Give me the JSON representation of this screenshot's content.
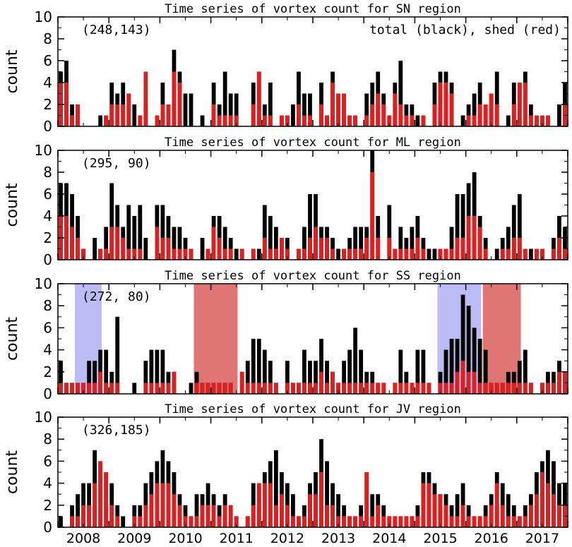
{
  "chart_data": [
    {
      "type": "bar",
      "region": "SN",
      "title": "Time series of vortex count for SN region",
      "ylabel": "count",
      "ylim": [
        0,
        10
      ],
      "yticks": [
        0,
        2,
        4,
        6,
        8,
        10
      ],
      "count_label": "(248,143)",
      "legend_label": "total (black), shed (red)",
      "series": [
        {
          "name": "total (black)",
          "color": "#000000",
          "values": [
            5,
            6,
            2,
            2,
            0,
            0,
            0,
            1,
            1,
            4,
            3,
            4,
            3,
            2,
            1,
            2,
            0,
            1,
            4,
            2,
            7,
            5,
            3,
            3,
            0,
            1,
            0,
            4,
            2,
            5,
            3,
            3,
            0,
            0,
            4,
            5,
            2,
            4,
            0,
            1,
            1,
            2,
            5,
            3,
            3,
            0,
            4,
            1,
            5,
            3,
            3,
            1,
            1,
            0,
            3,
            4,
            5,
            3,
            1,
            4,
            6,
            2,
            2,
            1,
            1,
            0,
            4,
            5,
            5,
            4,
            0,
            1,
            2,
            3,
            4,
            2,
            3,
            5,
            0,
            1,
            4,
            4,
            5,
            2,
            1,
            1,
            1,
            0,
            2,
            4
          ],
          "overlay": null
        },
        {
          "name": "shed (red)",
          "color": "#dd1f1f",
          "values": [
            4,
            4,
            1,
            2,
            0,
            0,
            0,
            0,
            1,
            2,
            2,
            2,
            3,
            0,
            1,
            5,
            0,
            1,
            2,
            2,
            5,
            4,
            0,
            0,
            0,
            0,
            0,
            2,
            1,
            1,
            1,
            1,
            0,
            0,
            2,
            5,
            1,
            1,
            0,
            1,
            1,
            0,
            2,
            1,
            1,
            0,
            2,
            1,
            4,
            3,
            3,
            1,
            1,
            0,
            1,
            2,
            3,
            2,
            1,
            3,
            2,
            1,
            1,
            0,
            1,
            0,
            2,
            4,
            4,
            3,
            0,
            0,
            1,
            1,
            2,
            2,
            3,
            2,
            0,
            0,
            2,
            4,
            4,
            1,
            1,
            1,
            1,
            0,
            0,
            2
          ]
        }
      ],
      "xticks": [
        "2008",
        "2009",
        "2010",
        "2011",
        "2012",
        "2013",
        "2014",
        "2015",
        "2016",
        "2017"
      ],
      "shaded_spans": []
    },
    {
      "type": "bar",
      "region": "ML",
      "title": "Time series of vortex count for ML region",
      "ylabel": "count",
      "ylim": [
        0,
        10
      ],
      "yticks": [
        0,
        2,
        4,
        6,
        8,
        10
      ],
      "count_label": "(295, 90)",
      "legend_label": "",
      "series": [
        {
          "name": "total (black)",
          "color": "#000000",
          "values": [
            7,
            7,
            6,
            4,
            1,
            0,
            2,
            1,
            3,
            7,
            5,
            3,
            5,
            4,
            5,
            2,
            0,
            5,
            5,
            4,
            3,
            3,
            2,
            1,
            0,
            2,
            1,
            4,
            4,
            3,
            2,
            1,
            1,
            0,
            1,
            1,
            5,
            4,
            3,
            2,
            2,
            0,
            1,
            3,
            6,
            6,
            3,
            3,
            2,
            1,
            1,
            2,
            3,
            3,
            3,
            10,
            4,
            0,
            5,
            1,
            3,
            2,
            3,
            4,
            2,
            1,
            1,
            1,
            1,
            3,
            6,
            6,
            7,
            8,
            4,
            2,
            0,
            1,
            2,
            3,
            5,
            6,
            1,
            1,
            1,
            1,
            0,
            2,
            4,
            3
          ],
          "overlay": null
        },
        {
          "name": "shed (red)",
          "color": "#dd1f1f",
          "values": [
            4,
            4,
            3,
            2,
            1,
            0,
            0,
            1,
            1,
            3,
            3,
            2,
            1,
            1,
            1,
            0,
            0,
            3,
            2,
            2,
            1,
            1,
            1,
            1,
            0,
            0,
            1,
            3,
            2,
            1,
            1,
            0,
            1,
            0,
            1,
            0,
            2,
            1,
            1,
            2,
            1,
            0,
            1,
            1,
            2,
            3,
            2,
            2,
            1,
            0,
            1,
            1,
            1,
            1,
            2,
            8,
            2,
            0,
            2,
            1,
            1,
            1,
            1,
            2,
            1,
            0,
            0,
            1,
            1,
            1,
            2,
            2,
            4,
            4,
            3,
            1,
            0,
            0,
            1,
            1,
            2,
            2,
            1,
            0,
            1,
            1,
            0,
            1,
            2,
            1
          ]
        }
      ],
      "xticks": [
        "2008",
        "2009",
        "2010",
        "2011",
        "2012",
        "2013",
        "2014",
        "2015",
        "2016",
        "2017"
      ],
      "shaded_spans": []
    },
    {
      "type": "bar",
      "region": "SS",
      "title": "Time series of vortex count for SS region",
      "ylabel": "count",
      "ylim": [
        0,
        10
      ],
      "yticks": [
        0,
        2,
        4,
        6,
        8,
        10
      ],
      "count_label": "(272, 80)",
      "legend_label": "",
      "series": [
        {
          "name": "total (black)",
          "color": "#000000",
          "values": [
            3,
            1,
            1,
            1,
            1,
            3,
            3,
            4,
            4,
            2,
            7,
            0,
            0,
            1,
            0,
            3,
            4,
            4,
            4,
            2,
            2,
            0,
            0,
            1,
            2,
            1,
            1,
            1,
            1,
            1,
            1,
            0,
            2,
            3,
            5,
            5,
            4,
            3,
            1,
            0,
            3,
            1,
            1,
            4,
            3,
            3,
            5,
            3,
            2,
            1,
            3,
            4,
            6,
            4,
            2,
            2,
            1,
            1,
            0,
            1,
            4,
            2,
            1,
            4,
            4,
            1,
            0,
            2,
            4,
            5,
            5,
            9,
            8,
            6,
            5,
            4,
            1,
            1,
            1,
            2,
            2,
            3,
            4,
            1,
            0,
            1,
            2,
            2,
            3,
            2
          ],
          "overlay": null
        },
        {
          "name": "shed (red)",
          "color": "#dd1f1f",
          "values": [
            1,
            1,
            1,
            1,
            1,
            1,
            1,
            2,
            1,
            1,
            1,
            0,
            0,
            0,
            0,
            1,
            1,
            1,
            1,
            1,
            2,
            0,
            0,
            0,
            1,
            1,
            1,
            1,
            1,
            1,
            1,
            0,
            2,
            1,
            1,
            1,
            1,
            1,
            1,
            0,
            1,
            1,
            1,
            1,
            1,
            1,
            2,
            1,
            2,
            1,
            1,
            1,
            1,
            1,
            1,
            1,
            1,
            1,
            0,
            1,
            1,
            1,
            1,
            1,
            1,
            1,
            0,
            1,
            1,
            1,
            2,
            3,
            2,
            2,
            1,
            1,
            1,
            1,
            1,
            1,
            1,
            1,
            1,
            1,
            0,
            1,
            1,
            1,
            2,
            2
          ]
        }
      ],
      "xticks": [
        "2008",
        "2009",
        "2010",
        "2011",
        "2012",
        "2013",
        "2014",
        "2015",
        "2016",
        "2017"
      ],
      "shaded_spans": [
        {
          "kind": "blue",
          "color": "#bbbbf5",
          "start_index": 3,
          "end_index": 7
        },
        {
          "kind": "red",
          "color": "#e07575",
          "start_index": 24,
          "end_index": 31
        },
        {
          "kind": "blue",
          "color": "#bbbbf5",
          "start_index": 67,
          "end_index": 74
        },
        {
          "kind": "red",
          "color": "#e07575",
          "start_index": 75,
          "end_index": 81
        }
      ]
    },
    {
      "type": "bar",
      "region": "JV",
      "title": "Time series of vortex count for JV region",
      "ylabel": "count",
      "ylim": [
        0,
        10
      ],
      "yticks": [
        0,
        2,
        4,
        6,
        8,
        10
      ],
      "count_label": "(326,185)",
      "legend_label": "",
      "series": [
        {
          "name": "total (black)",
          "color": "#000000",
          "values": [
            1,
            0,
            2,
            3,
            4,
            4,
            7,
            6,
            5,
            4,
            2,
            1,
            0,
            2,
            2,
            4,
            5,
            6,
            7,
            6,
            5,
            3,
            2,
            1,
            3,
            3,
            4,
            3,
            2,
            3,
            2,
            1,
            0,
            1,
            4,
            4,
            5,
            6,
            7,
            5,
            4,
            3,
            1,
            2,
            4,
            5,
            8,
            6,
            4,
            3,
            2,
            1,
            1,
            2,
            5,
            3,
            3,
            2,
            1,
            1,
            1,
            1,
            1,
            2,
            5,
            5,
            4,
            3,
            3,
            2,
            3,
            4,
            2,
            1,
            1,
            2,
            3,
            5,
            4,
            3,
            2,
            1,
            2,
            3,
            5,
            6,
            7,
            6,
            4,
            4
          ],
          "overlay": null
        },
        {
          "name": "shed (red)",
          "color": "#dd1f1f",
          "values": [
            0,
            0,
            1,
            1,
            2,
            2,
            4,
            6,
            5,
            2,
            1,
            0,
            0,
            1,
            1,
            2,
            3,
            4,
            4,
            4,
            3,
            2,
            1,
            1,
            1,
            2,
            2,
            2,
            1,
            2,
            2,
            1,
            0,
            1,
            2,
            4,
            4,
            4,
            2,
            3,
            2,
            1,
            1,
            1,
            3,
            3,
            5,
            2,
            2,
            1,
            1,
            1,
            1,
            1,
            5,
            1,
            2,
            1,
            1,
            1,
            1,
            1,
            1,
            1,
            4,
            4,
            3,
            3,
            2,
            1,
            1,
            2,
            1,
            1,
            1,
            1,
            2,
            4,
            2,
            1,
            1,
            1,
            1,
            2,
            3,
            5,
            4,
            3,
            2,
            2
          ]
        }
      ],
      "xticks": [
        "2008",
        "2009",
        "2010",
        "2011",
        "2012",
        "2013",
        "2014",
        "2015",
        "2016",
        "2017"
      ],
      "shaded_spans": []
    }
  ]
}
